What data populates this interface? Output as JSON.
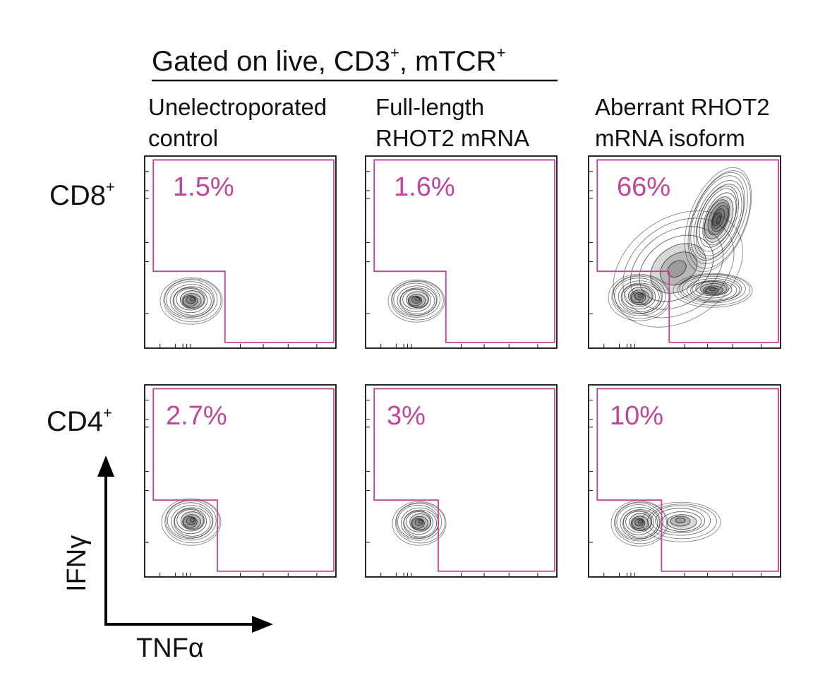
{
  "figure": {
    "header": "Gated on live, CD3",
    "header_sup": "+",
    "header_tail": ", mTCR",
    "header_tail_sup": "+",
    "columns": [
      {
        "line1": "Unelectroporated",
        "line2": "control"
      },
      {
        "line1": "Full-length",
        "line2": "RHOT2 mRNA"
      },
      {
        "line1": "Aberrant RHOT2",
        "line2": "mRNA isoform"
      }
    ],
    "rows": [
      {
        "label": "CD8",
        "sup": "+"
      },
      {
        "label": "CD4",
        "sup": "+"
      }
    ],
    "axis_y": "IFNγ",
    "axis_x": "TNFα",
    "colors": {
      "gate": "#c2459a",
      "contour": "#2a2a2a",
      "frame": "#111111"
    }
  },
  "chart_data": {
    "type": "contour",
    "x_label": "TNFα",
    "y_label": "IFNγ",
    "rows": [
      "CD8+",
      "CD4+"
    ],
    "columns": [
      "Unelectroporated control",
      "Full-length RHOT2 mRNA",
      "Aberrant RHOT2 mRNA isoform"
    ],
    "gate_percentages": [
      [
        "1.5%",
        "1.6%",
        "66%"
      ],
      [
        "2.7%",
        "3%",
        "10%"
      ]
    ],
    "gate_values": [
      [
        1.5,
        1.6,
        66
      ],
      [
        2.7,
        3,
        10
      ]
    ]
  }
}
